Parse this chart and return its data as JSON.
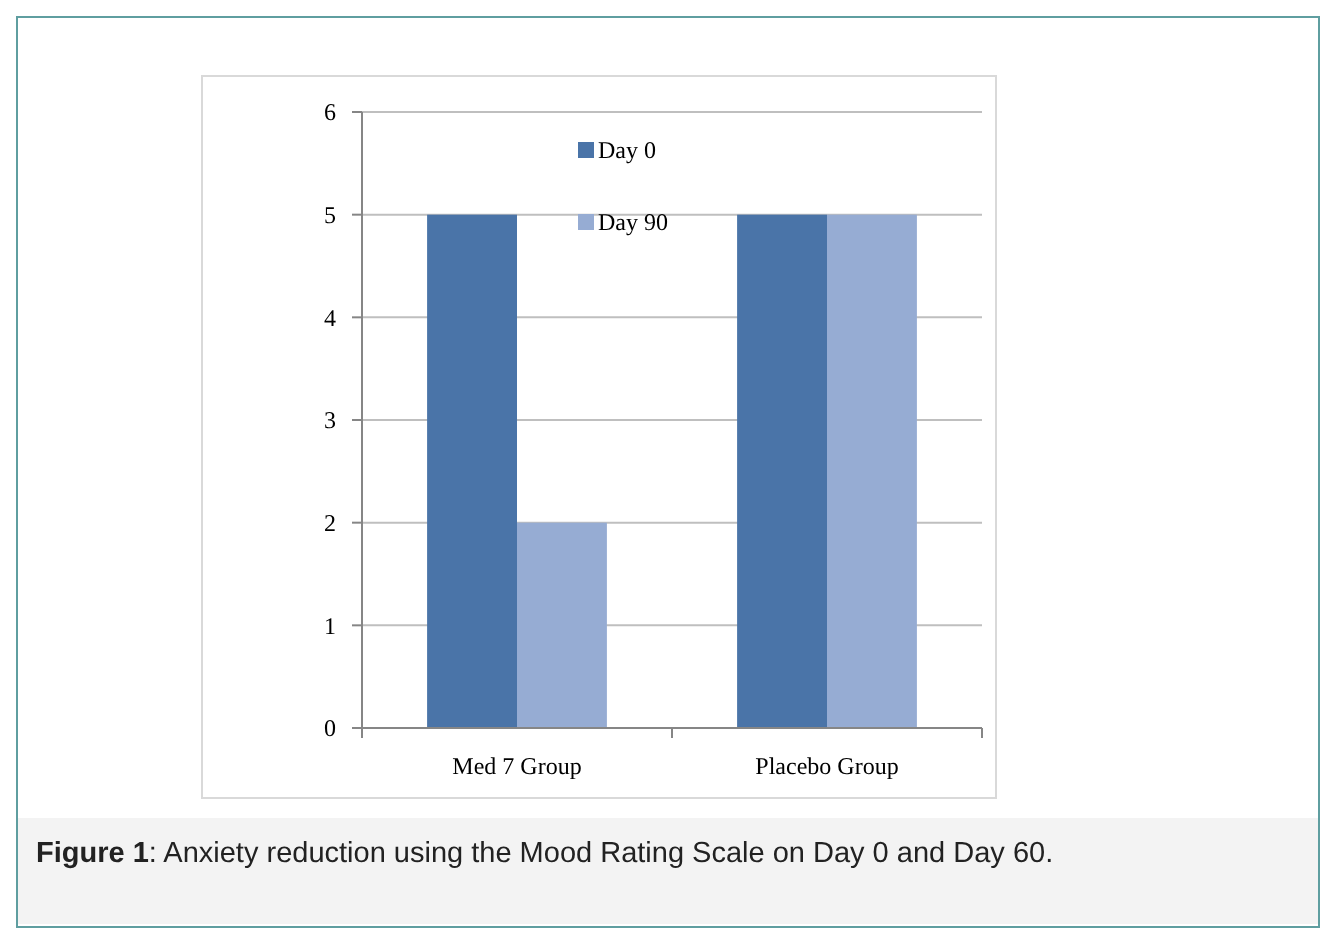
{
  "chart_data": {
    "type": "bar",
    "categories": [
      "Med 7 Group",
      "Placebo Group"
    ],
    "series": [
      {
        "name": "Day 0",
        "color": "#4a74a8",
        "values": [
          5,
          5
        ]
      },
      {
        "name": "Day 90",
        "color": "#96acd3",
        "values": [
          2,
          5
        ]
      }
    ],
    "ylim": [
      0,
      6
    ],
    "yticks": [
      0,
      1,
      2,
      3,
      4,
      5,
      6
    ],
    "grid": "y",
    "legend": "top",
    "annotations": [
      "Figure 1: Anxiety reduction using the Mood Rating Scale on Day 0 and Day 60."
    ]
  }
}
